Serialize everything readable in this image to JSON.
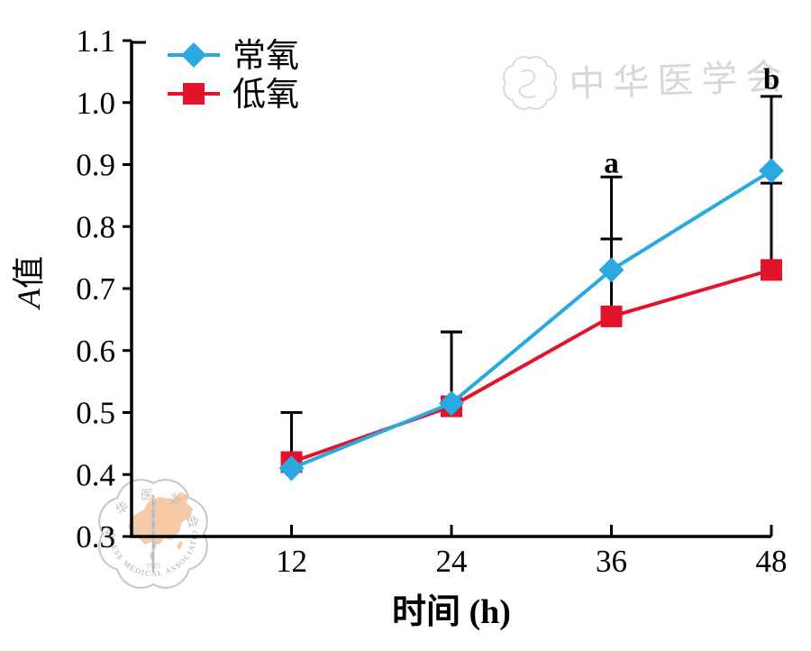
{
  "chart_data": {
    "type": "line",
    "x": [
      12,
      24,
      36,
      48
    ],
    "xticks": [
      "12",
      "24",
      "36",
      "48"
    ],
    "yticks": [
      "0.3",
      "0.4",
      "0.5",
      "0.6",
      "0.7",
      "0.8",
      "0.9",
      "1.0",
      "1.1"
    ],
    "xlim": [
      0,
      48
    ],
    "ylim": [
      0.3,
      1.1
    ],
    "xlabel": "时间 (h)",
    "ylabel": "A值",
    "ylabel_parts": {
      "italic": "A",
      "normal": "值"
    },
    "grid": false,
    "legend_position": "top-left",
    "series": [
      {
        "name": "常氧",
        "color": "#29a9e0",
        "marker": "diamond",
        "values": [
          0.41,
          0.515,
          0.73,
          0.89
        ],
        "error_top": [
          0.5,
          0.63,
          0.88,
          1.01
        ]
      },
      {
        "name": "低氧",
        "color": "#e3132c",
        "marker": "square",
        "values": [
          0.42,
          0.51,
          0.655,
          0.73
        ],
        "error_top": [
          0.5,
          0.63,
          0.78,
          0.87
        ]
      }
    ],
    "annotations": [
      {
        "text": "a",
        "x": 36,
        "y": 0.887
      },
      {
        "text": "b",
        "x": 48,
        "y": 1.022
      }
    ]
  },
  "watermarks": {
    "calligraphy_text": "中华医学会",
    "logo": {
      "top_arc_text": "中华医学会",
      "bottom_arc_text": "CHINESE MEDICAL ASSOCIATION",
      "year": "1915"
    }
  }
}
